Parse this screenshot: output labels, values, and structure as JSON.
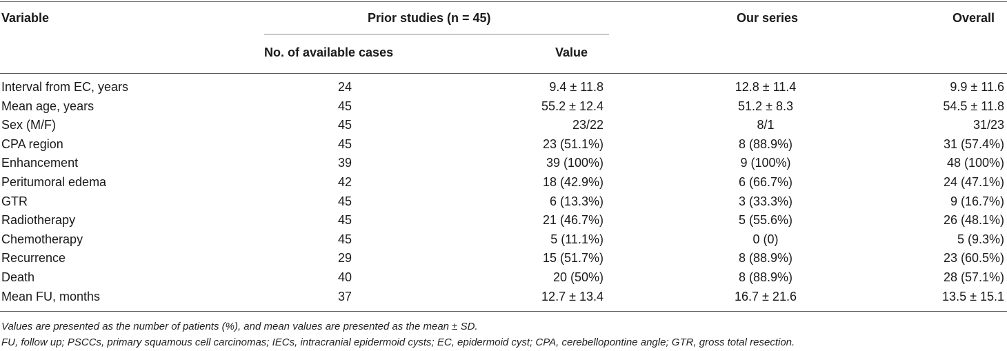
{
  "header": {
    "variable": "Variable",
    "prior_studies": "Prior studies (n = 45)",
    "our_series": "Our series",
    "overall": "Overall",
    "available_cases": "No. of available cases",
    "value": "Value"
  },
  "rows": [
    {
      "variable": "Interval from EC, years",
      "cases": "24",
      "value": "9.4 ± 11.8",
      "ours": "12.8 ± 11.4",
      "overall": "9.9 ± 11.6"
    },
    {
      "variable": "Mean age, years",
      "cases": "45",
      "value": "55.2 ± 12.4",
      "ours": "51.2 ± 8.3",
      "overall": "54.5 ± 11.8"
    },
    {
      "variable": "Sex (M/F)",
      "cases": "45",
      "value": "23/22",
      "ours": "8/1",
      "overall": "31/23"
    },
    {
      "variable": "CPA region",
      "cases": "45",
      "value": "23 (51.1%)",
      "ours": "8 (88.9%)",
      "overall": "31 (57.4%)"
    },
    {
      "variable": "Enhancement",
      "cases": "39",
      "value": "39 (100%)",
      "ours": "9 (100%)",
      "overall": "48 (100%)"
    },
    {
      "variable": "Peritumoral edema",
      "cases": "42",
      "value": "18 (42.9%)",
      "ours": "6 (66.7%)",
      "overall": "24 (47.1%)"
    },
    {
      "variable": "GTR",
      "cases": "45",
      "value": "6 (13.3%)",
      "ours": "3 (33.3%)",
      "overall": "9 (16.7%)"
    },
    {
      "variable": "Radiotherapy",
      "cases": "45",
      "value": "21 (46.7%)",
      "ours": "5 (55.6%)",
      "overall": "26 (48.1%)"
    },
    {
      "variable": "Chemotherapy",
      "cases": "45",
      "value": "5 (11.1%)",
      "ours": "0 (0)",
      "overall": "5 (9.3%)"
    },
    {
      "variable": "Recurrence",
      "cases": "29",
      "value": "15 (51.7%)",
      "ours": "8 (88.9%)",
      "overall": "23 (60.5%)"
    },
    {
      "variable": "Death",
      "cases": "40",
      "value": "20 (50%)",
      "ours": "8 (88.9%)",
      "overall": "28 (57.1%)"
    },
    {
      "variable": "Mean FU, months",
      "cases": "37",
      "value": "12.7 ± 13.4",
      "ours": "16.7 ± 21.6",
      "overall": "13.5 ± 15.1"
    }
  ],
  "footnotes": {
    "line1": "Values are presented as the number of patients (%), and mean values are presented as the mean ± SD.",
    "line2": "FU, follow up; PSCCs, primary squamous cell carcinomas; IECs, intracranial epidermoid cysts; EC, epidermoid cyst; CPA, cerebellopontine angle; GTR, gross total resection."
  }
}
